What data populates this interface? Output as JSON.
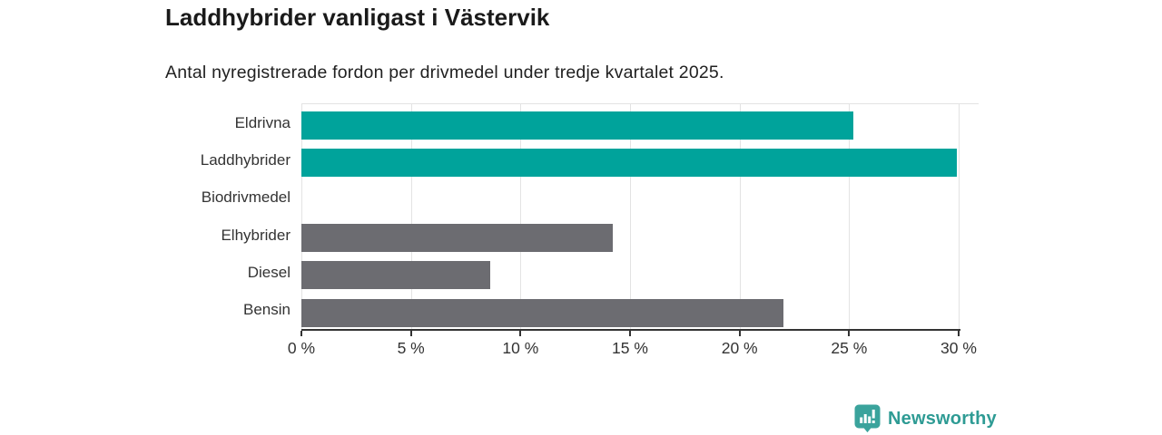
{
  "header": {
    "title": "Laddhybrider vanligast i Västervik",
    "subtitle": "Antal nyregistrerade fordon per drivmedel under tredje kvartalet 2025."
  },
  "chart_data": {
    "type": "bar",
    "orientation": "horizontal",
    "title": "Laddhybrider vanligast i Västervik",
    "subtitle": "Antal nyregistrerade fordon per drivmedel under tredje kvartalet 2025.",
    "categories": [
      "Eldrivna",
      "Laddhybrider",
      "Biodrivmedel",
      "Elhybrider",
      "Diesel",
      "Bensin"
    ],
    "values": [
      25.2,
      29.9,
      0,
      14.2,
      8.6,
      22.0
    ],
    "unit": "%",
    "xlabel": "",
    "ylabel": "",
    "xlim": [
      0,
      30
    ],
    "x_tick_values": [
      0,
      5,
      10,
      15,
      20,
      25,
      30
    ],
    "x_ticks": [
      "0 %",
      "5 %",
      "10 %",
      "15 %",
      "20 %",
      "25 %",
      "30 %"
    ],
    "grid": true,
    "legend": false,
    "bar_colors": [
      "#00a39b",
      "#00a39b",
      "#6c6c71",
      "#6c6c71",
      "#6c6c71",
      "#6c6c71"
    ],
    "highlight_color": "#00a39b",
    "default_color": "#6c6c71"
  },
  "branding": {
    "logo_text": "Newsworthy",
    "logo_color": "#2e9b94",
    "logo_icon": "bar-chart-speech-bubble-icon"
  }
}
